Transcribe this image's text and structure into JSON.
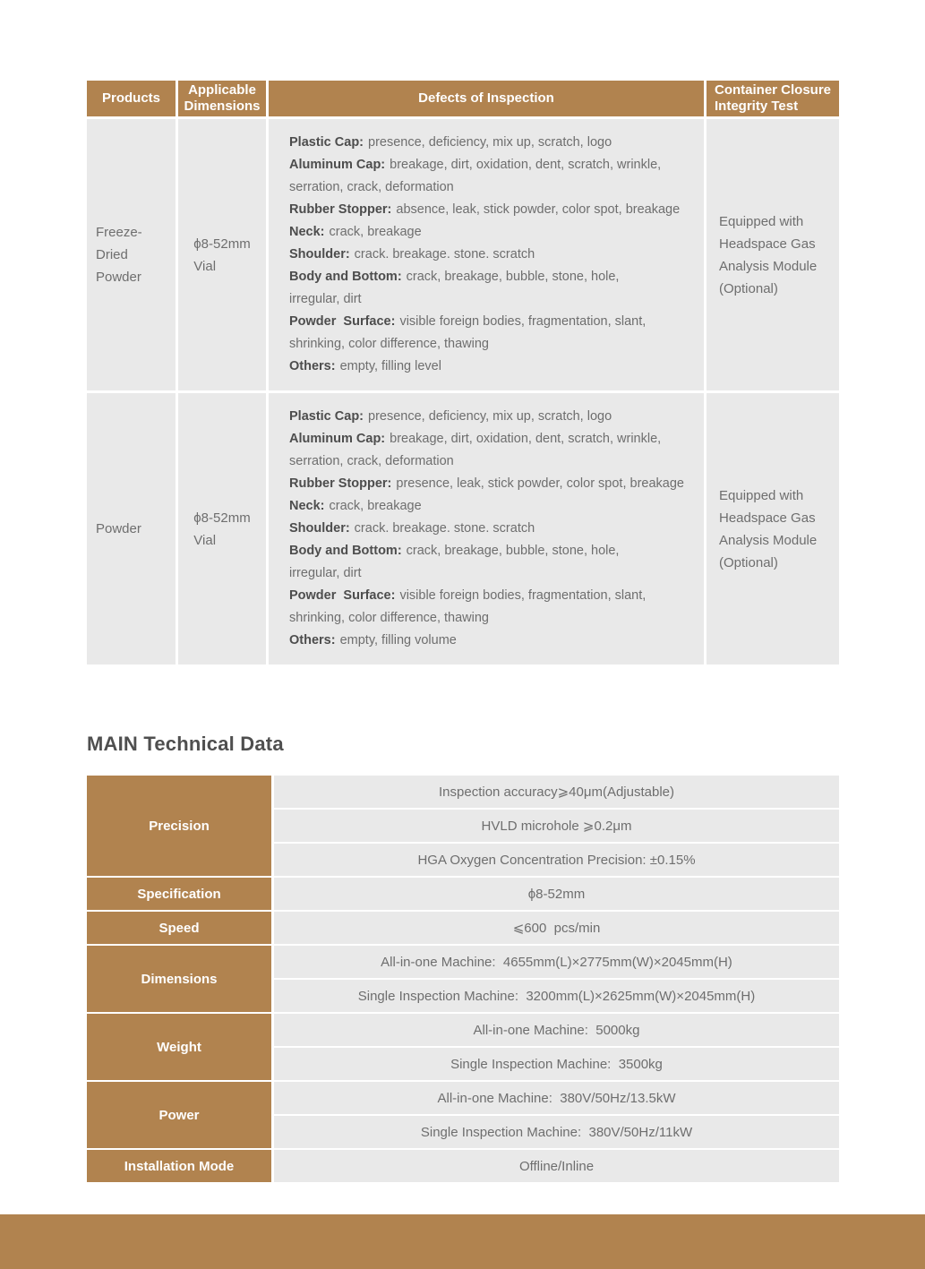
{
  "section_title": "MAIN Technical Data",
  "colors": {
    "accent": "#B1834F",
    "cell_background": "#E9E9E9",
    "body_text": "#6E6E6E",
    "strong_text": "#4D4D4D",
    "header_text": "#FFFFFF"
  },
  "inspection_table": {
    "headers": [
      "Products",
      "Applicable\nDimensions",
      "Defects of Inspection",
      "Container Closure\nIntegrity Test"
    ],
    "rows": [
      {
        "product": "Freeze-Dried\nPowder",
        "dimensions": "ϕ8-52mm\nVial",
        "defects": [
          {
            "label": "Plastic Cap:",
            "text": "presence, deficiency, mix up, scratch, logo"
          },
          {
            "label": "Aluminum Cap:",
            "text": "breakage, dirt, oxidation, dent, scratch, wrinkle,\nserration, crack, deformation"
          },
          {
            "label": "Rubber Stopper:",
            "text": "absence, leak, stick powder, color spot, breakage"
          },
          {
            "label": "Neck:",
            "text": "crack, breakage"
          },
          {
            "label": "Shoulder:",
            "text": "crack. breakage. stone. scratch"
          },
          {
            "label": "Body and Bottom:",
            "text": "crack, breakage, bubble, stone, hole,\nirregular, dirt"
          },
          {
            "label": "Powder  Surface:",
            "text": "visible foreign bodies, fragmentation, slant,\nshrinking, color difference, thawing"
          },
          {
            "label": "Others:",
            "text": "empty, filling level"
          }
        ],
        "ccit": "Equipped with\nHeadspace Gas\nAnalysis Module\n(Optional)"
      },
      {
        "product": "Powder",
        "dimensions": "ϕ8-52mm\nVial",
        "defects": [
          {
            "label": "Plastic Cap:",
            "text": "presence, deficiency, mix up, scratch, logo"
          },
          {
            "label": "Aluminum Cap:",
            "text": "breakage, dirt, oxidation, dent, scratch, wrinkle,\nserration, crack, deformation"
          },
          {
            "label": "Rubber Stopper:",
            "text": "presence, leak, stick powder, color spot, breakage"
          },
          {
            "label": "Neck:",
            "text": "crack, breakage"
          },
          {
            "label": "Shoulder:",
            "text": "crack. breakage. stone. scratch"
          },
          {
            "label": "Body and Bottom:",
            "text": "crack, breakage, bubble, stone, hole,\nirregular, dirt"
          },
          {
            "label": "Powder  Surface:",
            "text": "visible foreign bodies, fragmentation, slant,\nshrinking, color difference, thawing"
          },
          {
            "label": "Others:",
            "text": "empty, filling volume"
          }
        ],
        "ccit": "Equipped with\nHeadspace Gas\nAnalysis Module\n(Optional)"
      }
    ]
  },
  "technical_table": {
    "groups": [
      {
        "label": "Precision",
        "values": [
          "Inspection accuracy⩾40μm(Adjustable)",
          "HVLD microhole ⩾0.2μm",
          "HGA Oxygen Concentration Precision: ±0.15%"
        ]
      },
      {
        "label": "Specification",
        "values": [
          "ϕ8-52mm"
        ]
      },
      {
        "label": "Speed",
        "values": [
          "⩽600  pcs/min"
        ]
      },
      {
        "label": "Dimensions",
        "values": [
          "All-in-one Machine:  4655mm(L)×2775mm(W)×2045mm(H)",
          "Single Inspection Machine:  3200mm(L)×2625mm(W)×2045mm(H)"
        ]
      },
      {
        "label": "Weight",
        "values": [
          "All-in-one Machine:  5000kg",
          "Single Inspection Machine:  3500kg"
        ]
      },
      {
        "label": "Power",
        "values": [
          "All-in-one Machine:  380V/50Hz/13.5kW",
          "Single Inspection Machine:  380V/50Hz/11kW"
        ]
      },
      {
        "label": "Installation Mode",
        "values": [
          "Offline/Inline"
        ]
      }
    ]
  }
}
